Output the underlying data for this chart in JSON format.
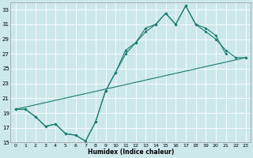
{
  "xlabel": "Humidex (Indice chaleur)",
  "bg_color": "#cce8eb",
  "grid_color": "#b0d8dc",
  "line_color": "#1a7a6e",
  "xlim": [
    -0.5,
    23.5
  ],
  "ylim": [
    15,
    34
  ],
  "xticks": [
    0,
    1,
    2,
    3,
    4,
    5,
    6,
    7,
    8,
    9,
    10,
    11,
    12,
    13,
    14,
    15,
    16,
    17,
    18,
    19,
    20,
    21,
    22,
    23
  ],
  "yticks": [
    15,
    17,
    19,
    21,
    23,
    25,
    27,
    29,
    31,
    33
  ],
  "line1_x": [
    0,
    1,
    2,
    3,
    4,
    5,
    6,
    7,
    8,
    9,
    10,
    11,
    12,
    13,
    14,
    15,
    16,
    17,
    18,
    19,
    20,
    21
  ],
  "line1_y": [
    19.5,
    19.5,
    18.5,
    17.2,
    17.5,
    16.2,
    16.0,
    15.2,
    17.8,
    22.0,
    24.5,
    27.5,
    28.5,
    30.5,
    31.0,
    32.5,
    31.0,
    33.5,
    31.0,
    30.5,
    29.5,
    27.0
  ],
  "line2_x": [
    0,
    1,
    2,
    3,
    4,
    5,
    6,
    7,
    8,
    9,
    10,
    11,
    12,
    13,
    14,
    15,
    16,
    17,
    18,
    19,
    20,
    21,
    22,
    23
  ],
  "line2_y": [
    19.5,
    19.5,
    18.5,
    17.2,
    17.5,
    16.2,
    16.0,
    15.2,
    17.8,
    22.0,
    24.5,
    27.0,
    28.5,
    30.0,
    31.0,
    32.5,
    31.0,
    33.5,
    31.0,
    30.0,
    29.0,
    27.5,
    26.5,
    26.5
  ],
  "line3_x": [
    0,
    23
  ],
  "line3_y": [
    19.5,
    26.5
  ]
}
